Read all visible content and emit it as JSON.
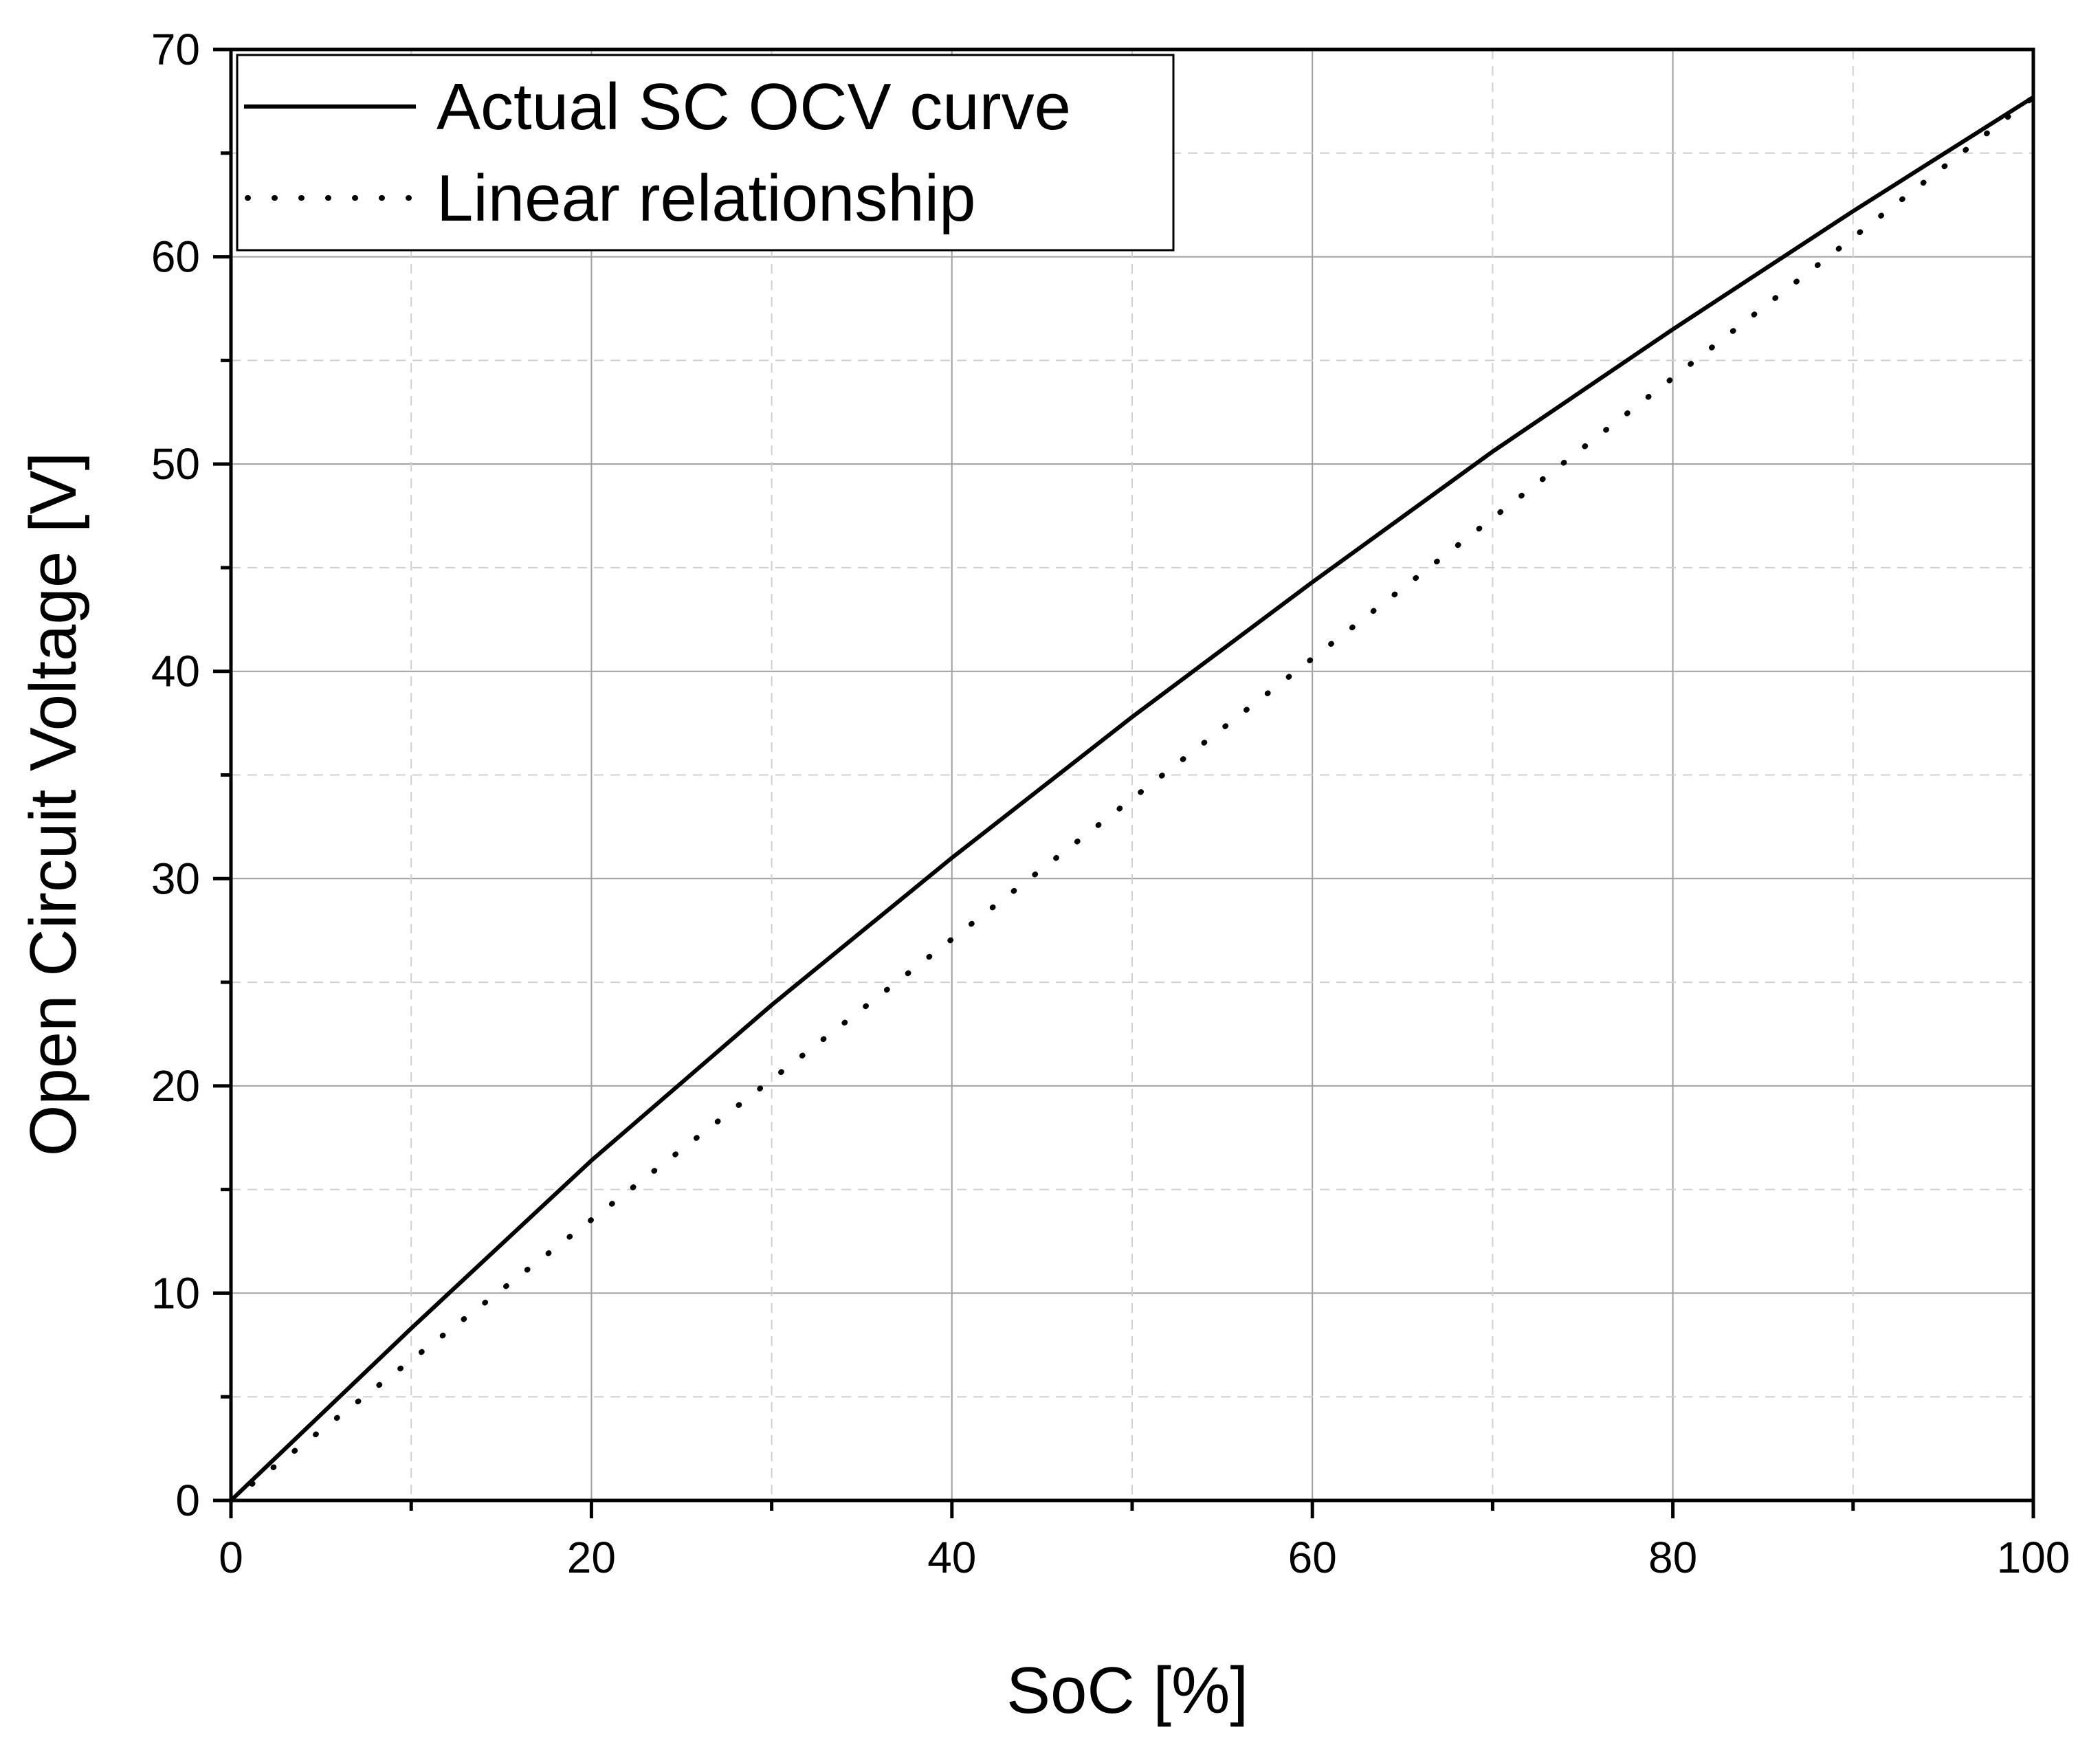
{
  "chart_data": {
    "type": "line",
    "xlabel": "SoC [%]",
    "ylabel": "Open Circuit Voltage [V]",
    "xlim": [
      0,
      100
    ],
    "ylim": [
      0,
      70
    ],
    "xticks": [
      0,
      20,
      40,
      60,
      80,
      100
    ],
    "yticks": [
      0,
      10,
      20,
      30,
      40,
      50,
      60,
      70
    ],
    "grid": true,
    "legend_position": "top-left",
    "series": [
      {
        "name": "Actual SC OCV curve",
        "style": "solid",
        "x": [
          0,
          10,
          20,
          30,
          40,
          50,
          60,
          70,
          80,
          90,
          100
        ],
        "y": [
          0,
          8.3,
          16.4,
          23.9,
          31.0,
          37.8,
          44.3,
          50.6,
          56.5,
          62.2,
          67.7
        ]
      },
      {
        "name": "Linear relationship",
        "style": "dotted",
        "x": [
          0,
          100
        ],
        "y": [
          0,
          67.7
        ]
      }
    ]
  }
}
